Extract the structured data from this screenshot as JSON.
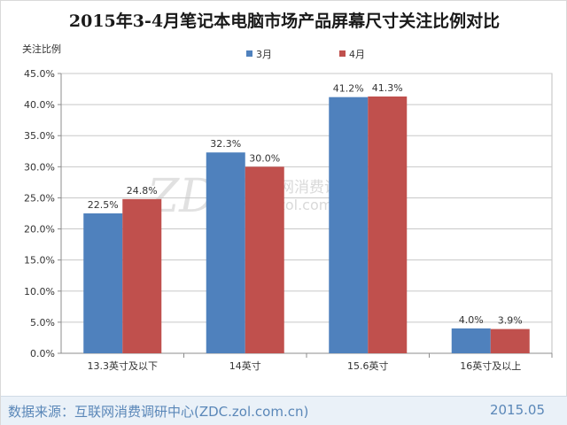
{
  "chart_data": {
    "type": "bar",
    "title": "2015年3-4月笔记本电脑市场产品屏幕尺寸关注比例对比",
    "ylabel": "关注比例",
    "xlabel": "",
    "categories": [
      "13.3英寸及以下",
      "14英寸",
      "15.6英寸",
      "16英寸及以上"
    ],
    "series": [
      {
        "name": "3月",
        "values": [
          22.5,
          32.3,
          41.2,
          4.0
        ],
        "labels": [
          "22.5%",
          "32.3%",
          "41.2%",
          "4.0%"
        ],
        "color": "#4f81bd"
      },
      {
        "name": "4月",
        "values": [
          24.8,
          30.0,
          41.3,
          3.9
        ],
        "labels": [
          "24.8%",
          "30.0%",
          "41.3%",
          "3.9%"
        ],
        "color": "#c0504d"
      }
    ],
    "ylim": [
      0,
      45
    ],
    "yticks": [
      "0.0%",
      "5.0%",
      "10.0%",
      "15.0%",
      "20.0%",
      "25.0%",
      "30.0%",
      "35.0%",
      "40.0%",
      "45.0%"
    ],
    "grid": true,
    "legend_position": "top"
  },
  "watermark": {
    "logo": "ZDC",
    "name": "互联网消费调研中心",
    "url": "zdc.zol.com.cn"
  },
  "footer": {
    "source": "数据来源：互联网消费调研中心(ZDC.zol.com.cn)",
    "date": "2015.05"
  }
}
